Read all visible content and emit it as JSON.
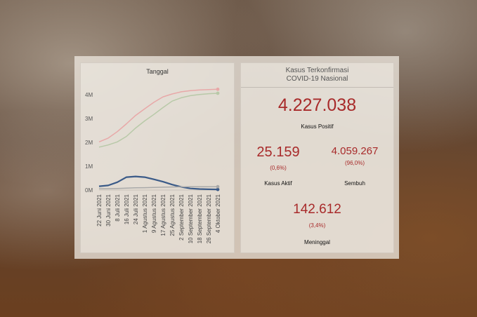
{
  "chart": {
    "title": "Tanggal",
    "y_ticks": [
      "0M",
      "1M",
      "2M",
      "3M",
      "4M"
    ],
    "x_ticks": [
      "22 Juni 2021",
      "30 Juni 2021",
      "8 Juli 2021",
      "16 Juli 2021",
      "24 Juli 2021",
      "1 Agustus 2021",
      "9 Agustus 2021",
      "17 Agustus 2021",
      "25 Agustus 2021",
      "2 September 2021",
      "10 September 2021",
      "18 September 2021",
      "26 September 2021",
      "4 Oktober 2021"
    ],
    "colors": {
      "positif": "#e8a8a8",
      "sembuh": "#b8c9a8",
      "aktif": "#3a5a88",
      "meninggal": "#a9a9a9"
    }
  },
  "chart_data": {
    "type": "line",
    "x": [
      "22 Juni 2021",
      "30 Juni 2021",
      "8 Juli 2021",
      "16 Juli 2021",
      "24 Juli 2021",
      "1 Agustus 2021",
      "9 Agustus 2021",
      "17 Agustus 2021",
      "25 Agustus 2021",
      "2 September 2021",
      "10 September 2021",
      "18 September 2021",
      "26 September 2021",
      "4 Oktober 2021"
    ],
    "ylim": [
      0,
      4500000
    ],
    "series": [
      {
        "key": "positif",
        "values": [
          2020000,
          2180000,
          2450000,
          2780000,
          3130000,
          3410000,
          3680000,
          3910000,
          4030000,
          4120000,
          4170000,
          4200000,
          4215000,
          4227038
        ]
      },
      {
        "key": "sembuh",
        "values": [
          1800000,
          1890000,
          2020000,
          2250000,
          2600000,
          2900000,
          3170000,
          3460000,
          3730000,
          3870000,
          3960000,
          4010000,
          4040000,
          4059267
        ]
      },
      {
        "key": "aktif",
        "values": [
          160000,
          195000,
          330000,
          540000,
          570000,
          540000,
          450000,
          350000,
          230000,
          130000,
          68000,
          45000,
          32000,
          25159
        ]
      },
      {
        "key": "meninggal",
        "values": [
          56000,
          60000,
          67000,
          80000,
          93000,
          100000,
          110000,
          120000,
          128000,
          133000,
          137000,
          140000,
          141500,
          142612
        ]
      }
    ],
    "grid": false
  },
  "summary": {
    "title_line1": "Kasus Terkonfirmasi",
    "title_line2": "COVID-19 Nasional",
    "positif_value": "4.227.038",
    "positif_label": "Kasus Positif",
    "aktif_value": "25.159",
    "aktif_pct": "(0,6%)",
    "aktif_label": "Kasus Aktif",
    "sembuh_value": "4.059.267",
    "sembuh_pct": "(96,0%)",
    "sembuh_label": "Sembuh",
    "meninggal_value": "142.612",
    "meninggal_pct": "(3,4%)",
    "meninggal_label": "Meninggal"
  }
}
